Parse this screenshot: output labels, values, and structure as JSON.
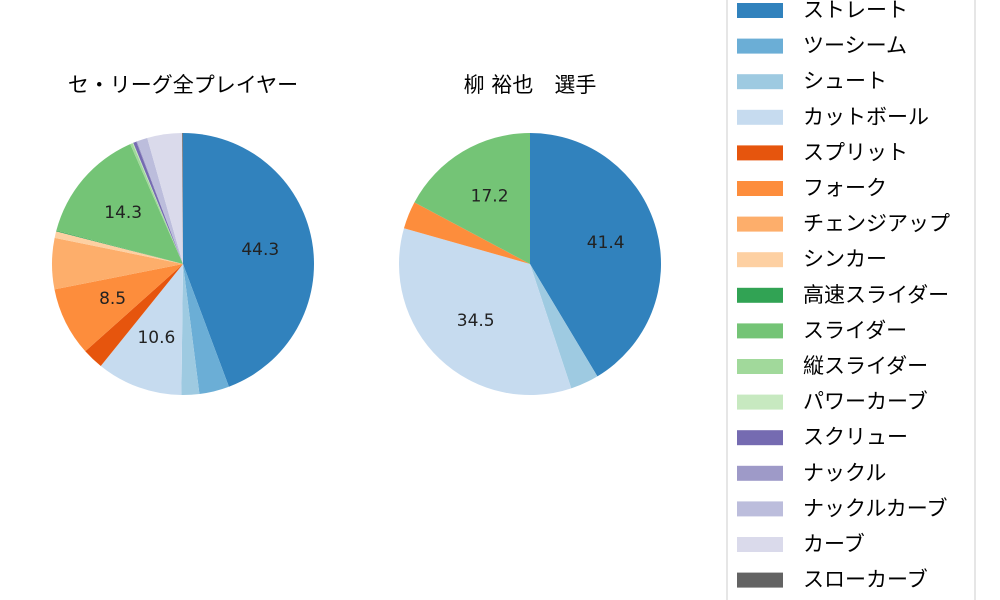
{
  "colors": {
    "ストレート": "#3182bd",
    "ツーシーム": "#6baed6",
    "シュート": "#9ecae1",
    "カットボール": "#c6dbef",
    "スプリット": "#e6550d",
    "フォーク": "#fd8d3c",
    "チェンジアップ": "#fdae6b",
    "シンカー": "#fdd0a2",
    "高速スライダー": "#31a354",
    "スライダー": "#74c476",
    "縦スライダー": "#a1d99b",
    "パワーカーブ": "#c7e9c0",
    "スクリュー": "#756bb1",
    "ナックル": "#9e9ac8",
    "ナックルカーブ": "#bcbddc",
    "カーブ": "#dadaeb",
    "スローカーブ": "#636363"
  },
  "chart_data": [
    {
      "type": "pie",
      "title": "セ・リーグ全プレイヤー",
      "start": "top",
      "direction": "clockwise",
      "slices": [
        {
          "label": "ストレート",
          "value": 44.3,
          "text": "44.3"
        },
        {
          "label": "ツーシーム",
          "value": 3.7
        },
        {
          "label": "シュート",
          "value": 2.2
        },
        {
          "label": "カットボール",
          "value": 10.6,
          "text": "10.6"
        },
        {
          "label": "スプリット",
          "value": 2.6
        },
        {
          "label": "フォーク",
          "value": 8.5,
          "text": "8.5"
        },
        {
          "label": "チェンジアップ",
          "value": 6.3
        },
        {
          "label": "シンカー",
          "value": 0.8
        },
        {
          "label": "高速スライダー",
          "value": 0.1
        },
        {
          "label": "スライダー",
          "value": 14.3,
          "text": "14.3"
        },
        {
          "label": "縦スライダー",
          "value": 0.3
        },
        {
          "label": "パワーカーブ",
          "value": 0.1
        },
        {
          "label": "スクリュー",
          "value": 0.4
        },
        {
          "label": "ナックル",
          "value": 0.1
        },
        {
          "label": "ナックルカーブ",
          "value": 1.3
        },
        {
          "label": "カーブ",
          "value": 4.3
        },
        {
          "label": "スローカーブ",
          "value": 0.1
        }
      ]
    },
    {
      "type": "pie",
      "title": "柳 裕也　選手",
      "start": "top",
      "direction": "clockwise",
      "slices": [
        {
          "label": "ストレート",
          "value": 41.4,
          "text": "41.4"
        },
        {
          "label": "シュート",
          "value": 3.5
        },
        {
          "label": "カットボール",
          "value": 34.5,
          "text": "34.5"
        },
        {
          "label": "フォーク",
          "value": 3.4
        },
        {
          "label": "スライダー",
          "value": 17.2,
          "text": "17.2"
        }
      ]
    }
  ],
  "legend": {
    "placement": "right",
    "items": [
      "ストレート",
      "ツーシーム",
      "シュート",
      "カットボール",
      "スプリット",
      "フォーク",
      "チェンジアップ",
      "シンカー",
      "高速スライダー",
      "スライダー",
      "縦スライダー",
      "パワーカーブ",
      "スクリュー",
      "ナックル",
      "ナックルカーブ",
      "カーブ",
      "スローカーブ"
    ]
  }
}
